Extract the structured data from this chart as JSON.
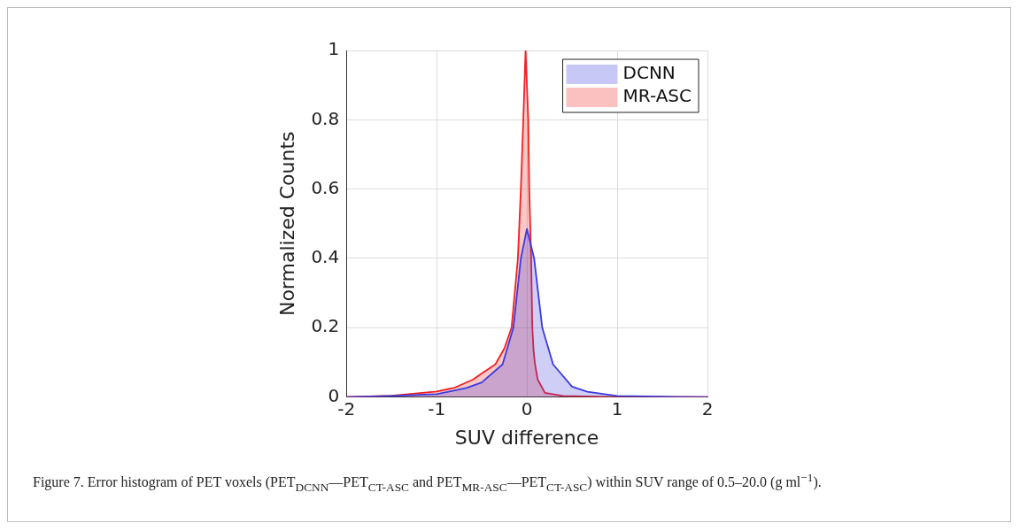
{
  "chart_data": {
    "type": "area",
    "xlabel": "SUV difference",
    "ylabel": "Normalized Counts",
    "xlim": [
      -2,
      2
    ],
    "xticks": [
      -2,
      -1,
      0,
      1,
      2
    ],
    "ylim": [
      0,
      1
    ],
    "yticks": [
      0,
      0.2,
      0.4,
      0.6,
      0.8,
      1
    ],
    "grid": true,
    "legend": "top right",
    "series": [
      {
        "name": "DCNN",
        "color": "#3a3ae0",
        "x": [
          -2,
          -1.5,
          -1,
          -0.67,
          -0.5,
          -0.27,
          -0.15,
          -0.067,
          0,
          0.08,
          0.17,
          0.29,
          0.5,
          0.67,
          1,
          1.5,
          2
        ],
        "values": [
          0,
          0.003,
          0.008,
          0.026,
          0.042,
          0.094,
          0.2,
          0.4,
          0.485,
          0.4,
          0.2,
          0.094,
          0.03,
          0.015,
          0.003,
          0.001,
          0
        ]
      },
      {
        "name": "MR-ASC",
        "color": "#f02020",
        "x": [
          -2,
          -1.5,
          -1,
          -0.8,
          -0.6,
          -0.5,
          -0.35,
          -0.25,
          -0.17,
          -0.1,
          -0.067,
          -0.04,
          -0.015,
          0.015,
          0.026,
          0.047,
          0.06,
          0.075,
          0.09,
          0.12,
          0.2,
          0.4,
          1,
          2
        ],
        "values": [
          0,
          0.004,
          0.016,
          0.027,
          0.05,
          0.068,
          0.094,
          0.14,
          0.2,
          0.4,
          0.6,
          0.8,
          1,
          0.8,
          0.6,
          0.4,
          0.2,
          0.13,
          0.094,
          0.05,
          0.012,
          0.003,
          0,
          0
        ]
      }
    ],
    "annotations": [
      "Figure 7. Error histogram of PET voxels (PET$_{DCNN}$—PET$_{CT-ASC}$ and PET$_{MR-ASC}$—PET$_{CT-ASC}$) within SUV range of 0.5–20.0 (g ml$^{−1}$)."
    ]
  }
}
